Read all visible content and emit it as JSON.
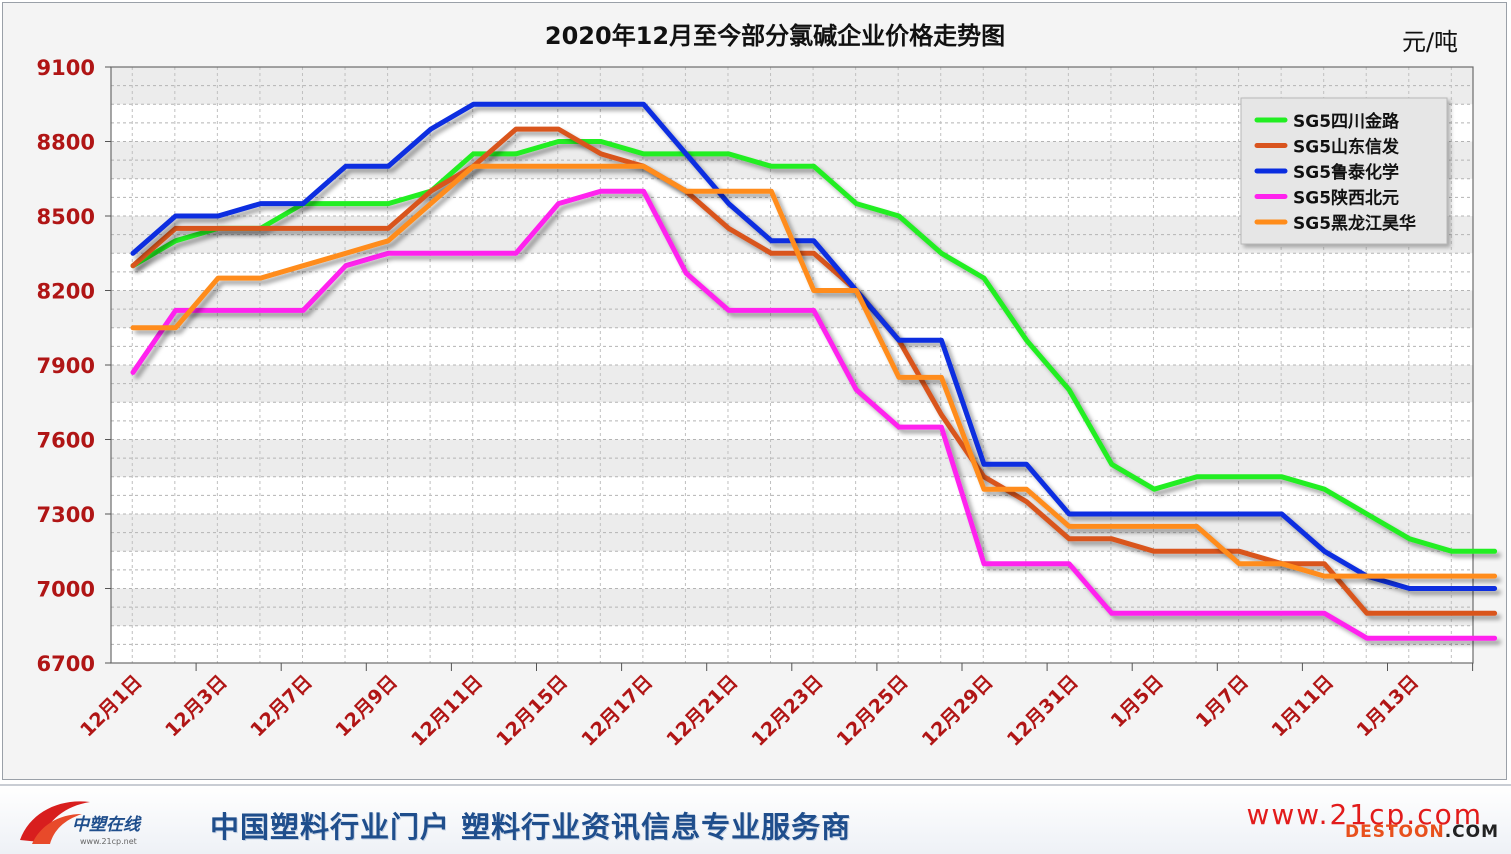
{
  "chart_data": {
    "type": "line",
    "title": "2020年12月至今部分氯碱企业价格走势图",
    "unit": "元/吨",
    "ylim": [
      6700,
      9100
    ],
    "yticks": [
      6700,
      7000,
      7300,
      7600,
      7900,
      8200,
      8500,
      8800,
      9100
    ],
    "categories": [
      "12月1日",
      "12月3日",
      "12月7日",
      "12月9日",
      "12月11日",
      "12月15日",
      "12月17日",
      "12月21日",
      "12月23日",
      "12月25日",
      "12月29日",
      "12月31日",
      "1月5日",
      "1月7日",
      "1月11日",
      "1月13日"
    ],
    "legend_position": "top-right",
    "grid": true,
    "series": [
      {
        "name": "SG5四川金路",
        "color": "#22ee22",
        "points": [
          [
            0.0,
            8300
          ],
          [
            0.5,
            8400
          ],
          [
            1.0,
            8450
          ],
          [
            1.5,
            8450
          ],
          [
            2.0,
            8550
          ],
          [
            2.5,
            8550
          ],
          [
            3.0,
            8550
          ],
          [
            3.5,
            8600
          ],
          [
            4.0,
            8750
          ],
          [
            4.5,
            8750
          ],
          [
            5.0,
            8800
          ],
          [
            5.5,
            8800
          ],
          [
            6.0,
            8750
          ],
          [
            6.5,
            8750
          ],
          [
            7.0,
            8750
          ],
          [
            7.5,
            8700
          ],
          [
            8.0,
            8700
          ],
          [
            8.5,
            8550
          ],
          [
            9.0,
            8500
          ],
          [
            9.5,
            8350
          ],
          [
            10.0,
            8250
          ],
          [
            10.5,
            8000
          ],
          [
            11.0,
            7800
          ],
          [
            11.5,
            7500
          ],
          [
            12.0,
            7400
          ],
          [
            12.5,
            7450
          ],
          [
            13.0,
            7450
          ],
          [
            13.5,
            7450
          ],
          [
            14.0,
            7400
          ],
          [
            14.5,
            7300
          ],
          [
            15.0,
            7200
          ],
          [
            15.5,
            7150
          ],
          [
            16.0,
            7150
          ]
        ]
      },
      {
        "name": "SG5山东信发",
        "color": "#d9541e",
        "points": [
          [
            0.0,
            8300
          ],
          [
            0.5,
            8450
          ],
          [
            1.0,
            8450
          ],
          [
            1.5,
            8450
          ],
          [
            2.0,
            8450
          ],
          [
            2.5,
            8450
          ],
          [
            3.0,
            8450
          ],
          [
            3.5,
            8600
          ],
          [
            4.0,
            8700
          ],
          [
            4.5,
            8850
          ],
          [
            5.0,
            8850
          ],
          [
            5.5,
            8750
          ],
          [
            6.0,
            8700
          ],
          [
            6.5,
            8600
          ],
          [
            7.0,
            8450
          ],
          [
            7.5,
            8350
          ],
          [
            8.0,
            8350
          ],
          [
            8.5,
            8200
          ],
          [
            9.0,
            8000
          ],
          [
            9.5,
            7700
          ],
          [
            10.0,
            7450
          ],
          [
            10.5,
            7350
          ],
          [
            11.0,
            7200
          ],
          [
            11.5,
            7200
          ],
          [
            12.0,
            7150
          ],
          [
            12.5,
            7150
          ],
          [
            13.0,
            7150
          ],
          [
            13.5,
            7100
          ],
          [
            14.0,
            7100
          ],
          [
            14.5,
            6900
          ],
          [
            15.0,
            6900
          ],
          [
            15.5,
            6900
          ],
          [
            16.0,
            6900
          ]
        ]
      },
      {
        "name": "SG5鲁泰化学",
        "color": "#0a2de0",
        "points": [
          [
            0.0,
            8350
          ],
          [
            0.5,
            8500
          ],
          [
            1.0,
            8500
          ],
          [
            1.5,
            8550
          ],
          [
            2.0,
            8550
          ],
          [
            2.5,
            8700
          ],
          [
            3.0,
            8700
          ],
          [
            3.5,
            8850
          ],
          [
            4.0,
            8950
          ],
          [
            4.5,
            8950
          ],
          [
            5.0,
            8950
          ],
          [
            5.5,
            8950
          ],
          [
            6.0,
            8950
          ],
          [
            6.5,
            8750
          ],
          [
            7.0,
            8550
          ],
          [
            7.5,
            8400
          ],
          [
            8.0,
            8400
          ],
          [
            8.5,
            8200
          ],
          [
            9.0,
            8000
          ],
          [
            9.5,
            8000
          ],
          [
            10.0,
            7500
          ],
          [
            10.5,
            7500
          ],
          [
            11.0,
            7300
          ],
          [
            11.5,
            7300
          ],
          [
            12.0,
            7300
          ],
          [
            12.5,
            7300
          ],
          [
            13.0,
            7300
          ],
          [
            13.5,
            7300
          ],
          [
            14.0,
            7150
          ],
          [
            14.5,
            7050
          ],
          [
            15.0,
            7000
          ],
          [
            15.5,
            7000
          ],
          [
            16.0,
            7000
          ]
        ]
      },
      {
        "name": "SG5陕西北元",
        "color": "#ff22ee",
        "points": [
          [
            0.0,
            7870
          ],
          [
            0.5,
            8120
          ],
          [
            1.0,
            8120
          ],
          [
            1.5,
            8120
          ],
          [
            2.0,
            8120
          ],
          [
            2.5,
            8300
          ],
          [
            3.0,
            8350
          ],
          [
            3.5,
            8350
          ],
          [
            4.0,
            8350
          ],
          [
            4.5,
            8350
          ],
          [
            5.0,
            8550
          ],
          [
            5.5,
            8600
          ],
          [
            6.0,
            8600
          ],
          [
            6.5,
            8270
          ],
          [
            7.0,
            8120
          ],
          [
            7.5,
            8120
          ],
          [
            8.0,
            8120
          ],
          [
            8.5,
            7800
          ],
          [
            9.0,
            7650
          ],
          [
            9.5,
            7650
          ],
          [
            10.0,
            7100
          ],
          [
            10.5,
            7100
          ],
          [
            11.0,
            7100
          ],
          [
            11.5,
            6900
          ],
          [
            12.0,
            6900
          ],
          [
            12.5,
            6900
          ],
          [
            13.0,
            6900
          ],
          [
            13.5,
            6900
          ],
          [
            14.0,
            6900
          ],
          [
            14.5,
            6800
          ],
          [
            15.0,
            6800
          ],
          [
            15.5,
            6800
          ],
          [
            16.0,
            6800
          ]
        ]
      },
      {
        "name": "SG5黑龙江昊华",
        "color": "#ff8c1a",
        "points": [
          [
            0.0,
            8050
          ],
          [
            0.5,
            8050
          ],
          [
            1.0,
            8250
          ],
          [
            1.5,
            8250
          ],
          [
            2.0,
            8300
          ],
          [
            2.5,
            8350
          ],
          [
            3.0,
            8400
          ],
          [
            3.5,
            8550
          ],
          [
            4.0,
            8700
          ],
          [
            4.5,
            8700
          ],
          [
            5.0,
            8700
          ],
          [
            5.5,
            8700
          ],
          [
            6.0,
            8700
          ],
          [
            6.5,
            8600
          ],
          [
            7.0,
            8600
          ],
          [
            7.5,
            8600
          ],
          [
            8.0,
            8200
          ],
          [
            8.5,
            8200
          ],
          [
            9.0,
            7850
          ],
          [
            9.5,
            7850
          ],
          [
            10.0,
            7400
          ],
          [
            10.5,
            7400
          ],
          [
            11.0,
            7250
          ],
          [
            11.5,
            7250
          ],
          [
            12.0,
            7250
          ],
          [
            12.5,
            7250
          ],
          [
            13.0,
            7100
          ],
          [
            13.5,
            7100
          ],
          [
            14.0,
            7050
          ],
          [
            14.5,
            7050
          ],
          [
            15.0,
            7050
          ],
          [
            15.5,
            7050
          ],
          [
            16.0,
            7050
          ]
        ]
      }
    ]
  },
  "footer": {
    "logo_text": "中塑在线",
    "logo_subtext": "www.21cp.net",
    "slogan": "中国塑料行业门户 塑料行业资讯信息专业服务商",
    "site": "www.21cp.com",
    "watermark_main": "DESTOON",
    "watermark_tail": ".COM"
  }
}
